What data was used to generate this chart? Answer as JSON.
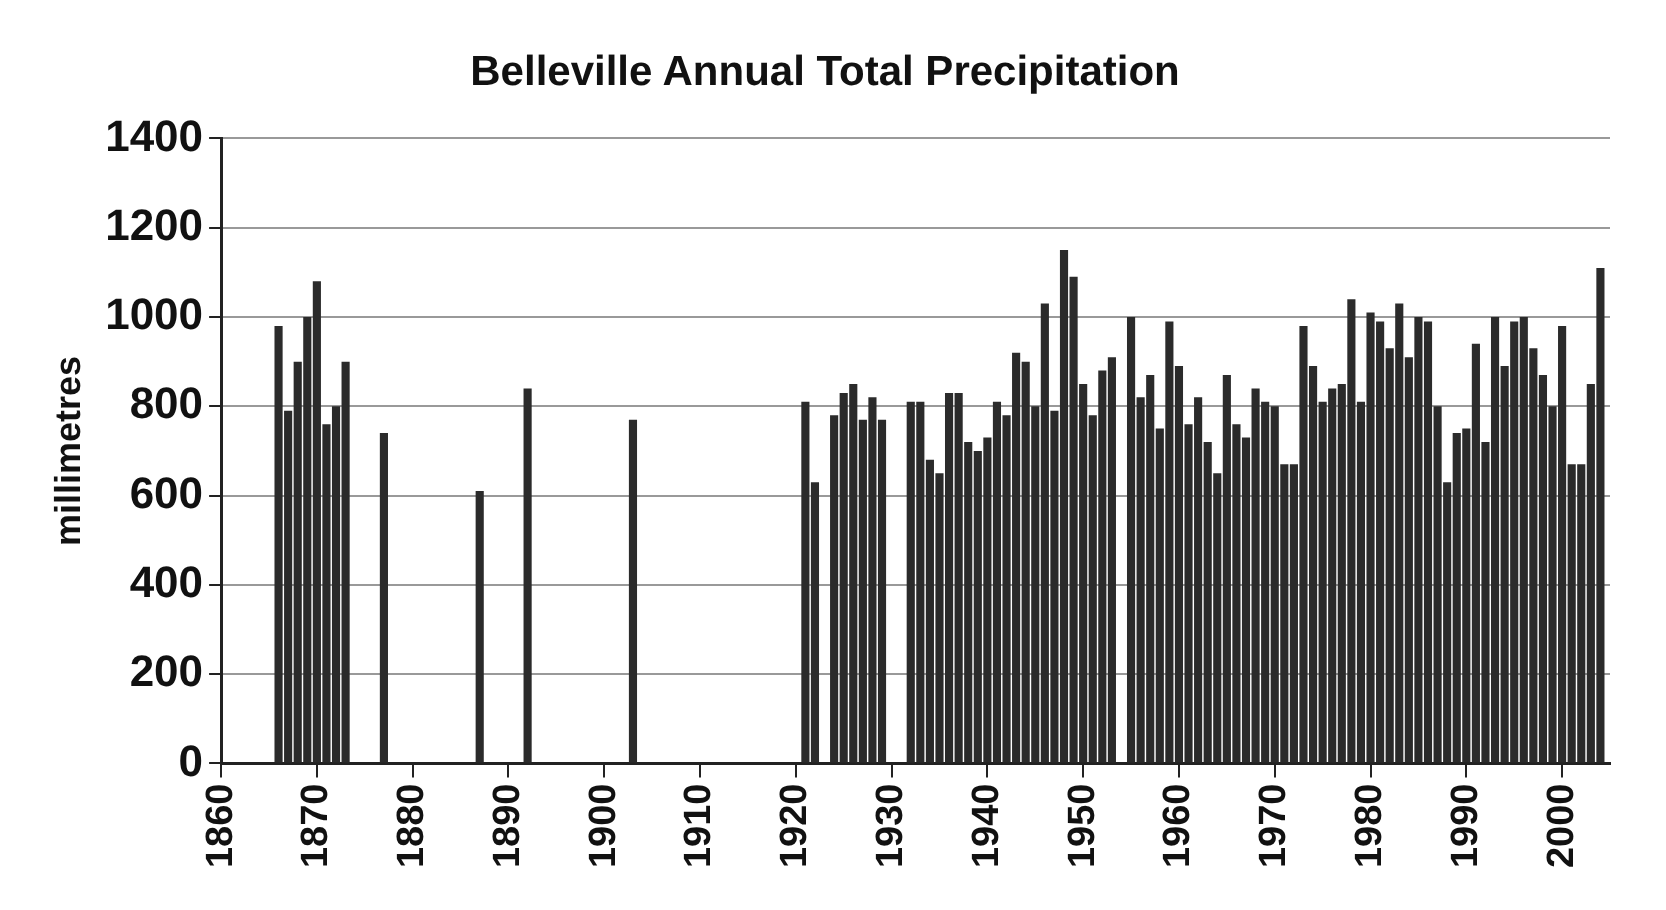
{
  "chart_data": {
    "type": "bar",
    "title": "Belleville Annual Total Precipitation",
    "ylabel": "millimetres",
    "x": [
      1866,
      1867,
      1868,
      1869,
      1870,
      1871,
      1872,
      1873,
      1877,
      1887,
      1892,
      1903,
      1921,
      1922,
      1924,
      1925,
      1926,
      1927,
      1928,
      1929,
      1932,
      1933,
      1934,
      1935,
      1936,
      1937,
      1938,
      1939,
      1940,
      1941,
      1942,
      1943,
      1944,
      1945,
      1946,
      1947,
      1948,
      1949,
      1950,
      1951,
      1952,
      1953,
      1955,
      1956,
      1957,
      1958,
      1959,
      1960,
      1961,
      1962,
      1963,
      1964,
      1965,
      1966,
      1967,
      1968,
      1969,
      1970,
      1971,
      1972,
      1973,
      1974,
      1975,
      1976,
      1977,
      1978,
      1979,
      1980,
      1981,
      1982,
      1983,
      1984,
      1985,
      1986,
      1987,
      1988,
      1989,
      1990,
      1991,
      1992,
      1993,
      1994,
      1995,
      1996,
      1997,
      1998,
      1999,
      2000,
      2001,
      2002,
      2003,
      2004
    ],
    "values": [
      980,
      790,
      900,
      1000,
      1080,
      760,
      800,
      900,
      740,
      610,
      840,
      770,
      810,
      630,
      780,
      830,
      850,
      770,
      820,
      770,
      810,
      810,
      680,
      650,
      830,
      830,
      720,
      700,
      730,
      810,
      780,
      920,
      900,
      800,
      1030,
      790,
      1150,
      1090,
      850,
      780,
      880,
      910,
      1000,
      820,
      870,
      750,
      990,
      890,
      760,
      820,
      720,
      650,
      870,
      760,
      730,
      840,
      810,
      800,
      670,
      670,
      980,
      890,
      810,
      840,
      850,
      1040,
      810,
      1010,
      990,
      930,
      1030,
      910,
      1000,
      990,
      800,
      630,
      740,
      750,
      940,
      720,
      1000,
      890,
      990,
      1000,
      930,
      870,
      800,
      980,
      670,
      670,
      850,
      1110
    ],
    "color": "#2b2b2b",
    "xlim": [
      1860,
      2005
    ],
    "xticks": [
      1860,
      1870,
      1880,
      1890,
      1900,
      1910,
      1920,
      1930,
      1940,
      1950,
      1960,
      1970,
      1980,
      1990,
      2000
    ],
    "ylim": [
      0,
      1400
    ],
    "yticks": [
      0,
      200,
      400,
      600,
      800,
      1000,
      1200,
      1400
    ],
    "grid": "y"
  }
}
